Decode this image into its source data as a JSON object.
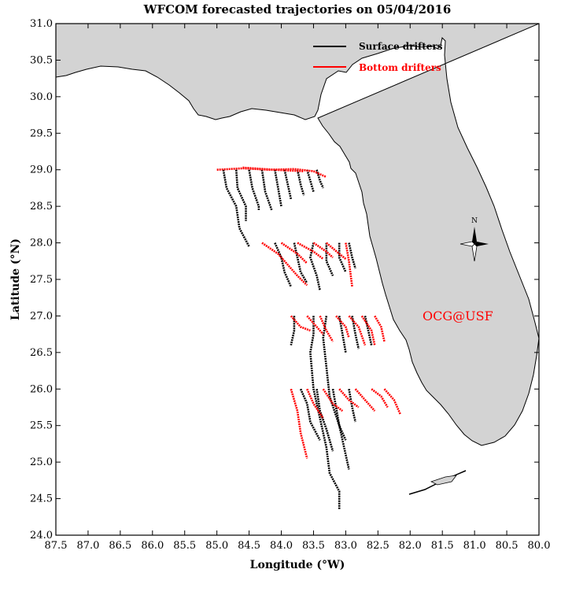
{
  "title": "WFCOM forecasted trajectories on 05/04/2016",
  "xlabel": "Longitude (°W)",
  "ylabel": "Latitude (°N)",
  "x_ticks": [
    "87.5",
    "87.0",
    "86.5",
    "86.0",
    "85.5",
    "85.0",
    "84.5",
    "84.0",
    "83.5",
    "83.0",
    "82.5",
    "82.0",
    "81.5",
    "81.0",
    "80.5",
    "80.0"
  ],
  "y_ticks": [
    "31.0",
    "30.5",
    "30.0",
    "29.5",
    "29.0",
    "28.5",
    "28.0",
    "27.5",
    "27.0",
    "26.5",
    "26.0",
    "25.5",
    "25.0",
    "24.5",
    "24.0"
  ],
  "legend": {
    "surface_label": "Surface drifters",
    "bottom_label": "Bottom drifters",
    "surface_color": "#000000",
    "bottom_color": "#ff0000"
  },
  "watermark": "OCG@USF",
  "watermark_color": "#ff0000",
  "compass_label": "N",
  "land_color": "#d3d3d3",
  "chart_data": {
    "type": "trajectory-map",
    "xlim": [
      87.5,
      80.0
    ],
    "ylim": [
      24.0,
      31.0
    ],
    "release_lines_lat": [
      29.0,
      28.0,
      27.0,
      26.0
    ],
    "surface_trajectories": [
      [
        [
          84.9,
          29.0
        ],
        [
          84.85,
          28.75
        ],
        [
          84.7,
          28.5
        ],
        [
          84.65,
          28.2
        ],
        [
          84.5,
          27.95
        ]
      ],
      [
        [
          84.7,
          29.0
        ],
        [
          84.68,
          28.75
        ],
        [
          84.55,
          28.5
        ],
        [
          84.55,
          28.3
        ]
      ],
      [
        [
          84.5,
          29.0
        ],
        [
          84.45,
          28.75
        ],
        [
          84.35,
          28.5
        ],
        [
          84.35,
          28.45
        ]
      ],
      [
        [
          84.3,
          29.0
        ],
        [
          84.25,
          28.7
        ],
        [
          84.15,
          28.45
        ]
      ],
      [
        [
          84.1,
          29.0
        ],
        [
          84.05,
          28.75
        ],
        [
          84.0,
          28.5
        ]
      ],
      [
        [
          83.95,
          29.0
        ],
        [
          83.9,
          28.8
        ],
        [
          83.85,
          28.6
        ]
      ],
      [
        [
          83.75,
          29.0
        ],
        [
          83.7,
          28.8
        ],
        [
          83.65,
          28.65
        ]
      ],
      [
        [
          83.6,
          29.0
        ],
        [
          83.55,
          28.85
        ],
        [
          83.5,
          28.7
        ]
      ],
      [
        [
          83.45,
          29.0
        ],
        [
          83.4,
          28.85
        ],
        [
          83.35,
          28.75
        ]
      ],
      [
        [
          84.1,
          28.0
        ],
        [
          84.0,
          27.8
        ],
        [
          83.95,
          27.6
        ],
        [
          83.85,
          27.4
        ]
      ],
      [
        [
          83.8,
          28.0
        ],
        [
          83.75,
          27.8
        ],
        [
          83.7,
          27.6
        ],
        [
          83.6,
          27.45
        ]
      ],
      [
        [
          83.5,
          28.0
        ],
        [
          83.55,
          27.8
        ],
        [
          83.45,
          27.55
        ],
        [
          83.4,
          27.35
        ]
      ],
      [
        [
          83.3,
          28.0
        ],
        [
          83.3,
          27.75
        ],
        [
          83.2,
          27.55
        ]
      ],
      [
        [
          83.1,
          28.0
        ],
        [
          83.1,
          27.8
        ],
        [
          83.0,
          27.6
        ]
      ],
      [
        [
          82.95,
          28.0
        ],
        [
          82.9,
          27.8
        ],
        [
          82.85,
          27.65
        ]
      ],
      [
        [
          83.8,
          27.0
        ],
        [
          83.8,
          26.8
        ],
        [
          83.85,
          26.6
        ]
      ],
      [
        [
          83.5,
          27.0
        ],
        [
          83.5,
          26.75
        ],
        [
          83.55,
          26.5
        ],
        [
          83.5,
          26.0
        ],
        [
          83.4,
          25.6
        ],
        [
          83.3,
          25.2
        ],
        [
          83.25,
          24.85
        ],
        [
          83.1,
          24.6
        ],
        [
          83.1,
          24.35
        ]
      ],
      [
        [
          83.3,
          27.0
        ],
        [
          83.35,
          26.7
        ],
        [
          83.3,
          26.3
        ],
        [
          83.25,
          25.9
        ],
        [
          83.1,
          25.5
        ],
        [
          83.0,
          25.1
        ],
        [
          82.95,
          24.9
        ]
      ],
      [
        [
          83.1,
          27.0
        ],
        [
          83.05,
          26.75
        ],
        [
          83.0,
          26.5
        ]
      ],
      [
        [
          82.9,
          27.0
        ],
        [
          82.85,
          26.75
        ],
        [
          82.8,
          26.55
        ]
      ],
      [
        [
          82.7,
          27.0
        ],
        [
          82.65,
          26.8
        ],
        [
          82.6,
          26.6
        ]
      ],
      [
        [
          83.7,
          26.0
        ],
        [
          83.6,
          25.8
        ],
        [
          83.55,
          25.55
        ],
        [
          83.4,
          25.3
        ]
      ],
      [
        [
          83.45,
          26.0
        ],
        [
          83.4,
          25.7
        ],
        [
          83.3,
          25.45
        ],
        [
          83.2,
          25.15
        ]
      ],
      [
        [
          83.2,
          26.0
        ],
        [
          83.15,
          25.75
        ],
        [
          83.1,
          25.5
        ],
        [
          83.0,
          25.3
        ]
      ],
      [
        [
          82.95,
          26.0
        ],
        [
          82.9,
          25.75
        ],
        [
          82.85,
          25.55
        ]
      ]
    ],
    "bottom_trajectories": [
      [
        [
          85.0,
          29.0
        ],
        [
          84.6,
          29.02
        ],
        [
          84.2,
          29.0
        ],
        [
          83.8,
          29.01
        ],
        [
          83.5,
          28.98
        ],
        [
          83.3,
          28.9
        ]
      ],
      [
        [
          84.6,
          29.03
        ],
        [
          84.1,
          29.0
        ],
        [
          83.65,
          28.98
        ]
      ],
      [
        [
          84.3,
          28.0
        ],
        [
          84.05,
          27.85
        ],
        [
          83.9,
          27.7
        ],
        [
          83.75,
          27.55
        ],
        [
          83.6,
          27.42
        ]
      ],
      [
        [
          84.0,
          28.0
        ],
        [
          83.75,
          27.85
        ],
        [
          83.6,
          27.72
        ]
      ],
      [
        [
          83.75,
          28.0
        ],
        [
          83.5,
          27.88
        ],
        [
          83.35,
          27.78
        ]
      ],
      [
        [
          83.5,
          28.0
        ],
        [
          83.3,
          27.88
        ],
        [
          83.2,
          27.8
        ]
      ],
      [
        [
          83.3,
          28.0
        ],
        [
          83.1,
          27.85
        ],
        [
          83.0,
          27.78
        ]
      ],
      [
        [
          83.0,
          28.0
        ],
        [
          82.95,
          27.75
        ],
        [
          82.9,
          27.4
        ]
      ],
      [
        [
          83.85,
          27.0
        ],
        [
          83.7,
          26.85
        ],
        [
          83.55,
          26.8
        ]
      ],
      [
        [
          83.6,
          27.0
        ],
        [
          83.45,
          26.85
        ],
        [
          83.35,
          26.75
        ]
      ],
      [
        [
          83.4,
          27.0
        ],
        [
          83.3,
          26.8
        ],
        [
          83.2,
          26.65
        ]
      ],
      [
        [
          83.15,
          27.0
        ],
        [
          83.0,
          26.85
        ],
        [
          82.95,
          26.7
        ]
      ],
      [
        [
          82.95,
          27.0
        ],
        [
          82.8,
          26.85
        ],
        [
          82.7,
          26.6
        ]
      ],
      [
        [
          82.75,
          27.0
        ],
        [
          82.6,
          26.8
        ],
        [
          82.55,
          26.6
        ]
      ],
      [
        [
          82.55,
          27.0
        ],
        [
          82.45,
          26.85
        ],
        [
          82.4,
          26.65
        ]
      ],
      [
        [
          83.85,
          26.0
        ],
        [
          83.75,
          25.7
        ],
        [
          83.7,
          25.4
        ],
        [
          83.6,
          25.05
        ]
      ],
      [
        [
          83.6,
          26.0
        ],
        [
          83.5,
          25.8
        ],
        [
          83.35,
          25.6
        ]
      ],
      [
        [
          83.35,
          26.0
        ],
        [
          83.2,
          25.8
        ],
        [
          83.05,
          25.7
        ]
      ],
      [
        [
          83.1,
          26.0
        ],
        [
          82.95,
          25.85
        ],
        [
          82.8,
          25.75
        ]
      ],
      [
        [
          82.85,
          26.0
        ],
        [
          82.7,
          25.85
        ],
        [
          82.55,
          25.7
        ]
      ],
      [
        [
          82.6,
          26.0
        ],
        [
          82.45,
          25.9
        ],
        [
          82.35,
          25.75
        ]
      ],
      [
        [
          82.4,
          26.0
        ],
        [
          82.25,
          25.85
        ],
        [
          82.15,
          25.65
        ]
      ]
    ]
  }
}
